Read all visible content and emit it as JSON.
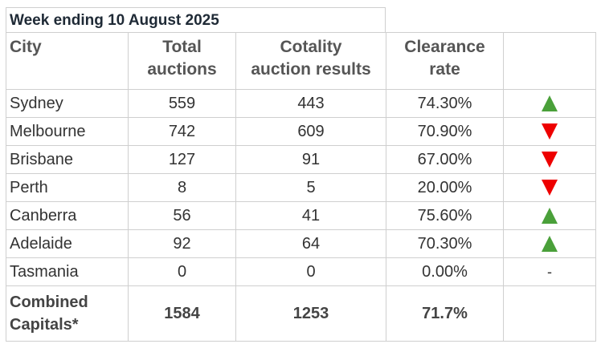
{
  "title": "Week ending 10 August 2025",
  "columns": {
    "city": "City",
    "total_auctions": "Total\nauctions",
    "auction_results": "Cotality\nauction results",
    "clearance_rate": "Clearance\nrate"
  },
  "rows": [
    {
      "city": "Sydney",
      "total": "559",
      "results": "443",
      "rate": "74.30%",
      "trend": "up",
      "trend_text": ""
    },
    {
      "city": "Melbourne",
      "total": "742",
      "results": "609",
      "rate": "70.90%",
      "trend": "down",
      "trend_text": ""
    },
    {
      "city": "Brisbane",
      "total": "127",
      "results": "91",
      "rate": "67.00%",
      "trend": "down",
      "trend_text": ""
    },
    {
      "city": "Perth",
      "total": "8",
      "results": "5",
      "rate": "20.00%",
      "trend": "down",
      "trend_text": ""
    },
    {
      "city": "Canberra",
      "total": "56",
      "results": "41",
      "rate": "75.60%",
      "trend": "up",
      "trend_text": ""
    },
    {
      "city": "Adelaide",
      "total": "92",
      "results": "64",
      "rate": "70.30%",
      "trend": "up",
      "trend_text": ""
    },
    {
      "city": "Tasmania",
      "total": "0",
      "results": "0",
      "rate": "0.00%",
      "trend": "none",
      "trend_text": "-"
    }
  ],
  "combined": {
    "city": "Combined\nCapitals*",
    "total": "1584",
    "results": "1253",
    "rate": "71.7%"
  },
  "colors": {
    "up": "#4aa03a",
    "down": "#ee0000",
    "border": "#cfcfcf"
  },
  "icons": {
    "up": "triangle-up-icon",
    "down": "triangle-down-icon"
  }
}
